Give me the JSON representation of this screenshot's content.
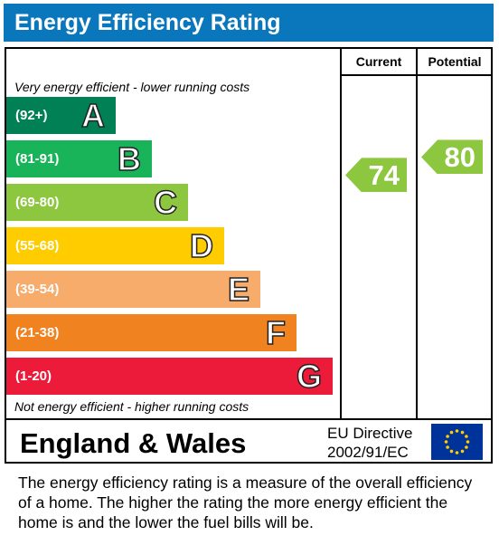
{
  "header": {
    "title": "Energy Efficiency Rating"
  },
  "chart_data": {
    "type": "bar",
    "columns": [
      "Current",
      "Potential"
    ],
    "top_note": "Very energy efficient - lower running costs",
    "bottom_note": "Not energy efficient - higher running costs",
    "bands": [
      {
        "range": "(92+)",
        "letter": "A",
        "color": "#008054"
      },
      {
        "range": "(81-91)",
        "letter": "B",
        "color": "#19b459"
      },
      {
        "range": "(69-80)",
        "letter": "C",
        "color": "#8dc63f"
      },
      {
        "range": "(55-68)",
        "letter": "D",
        "color": "#ffcc00"
      },
      {
        "range": "(39-54)",
        "letter": "E",
        "color": "#f7ac6b"
      },
      {
        "range": "(21-38)",
        "letter": "F",
        "color": "#f08220"
      },
      {
        "range": "(1-20)",
        "letter": "G",
        "color": "#ed1b3a"
      }
    ],
    "current": {
      "value": 74,
      "band": "C",
      "label": "74"
    },
    "potential": {
      "value": 80,
      "band": "C",
      "label": "80"
    }
  },
  "footer": {
    "region": "England & Wales",
    "directive_line1": "EU Directive",
    "directive_line2": "2002/91/EC"
  },
  "description": "The energy efficiency rating is a measure of the overall efficiency of a home.  The higher the rating the more energy efficient the home is and the lower the fuel bills will be."
}
